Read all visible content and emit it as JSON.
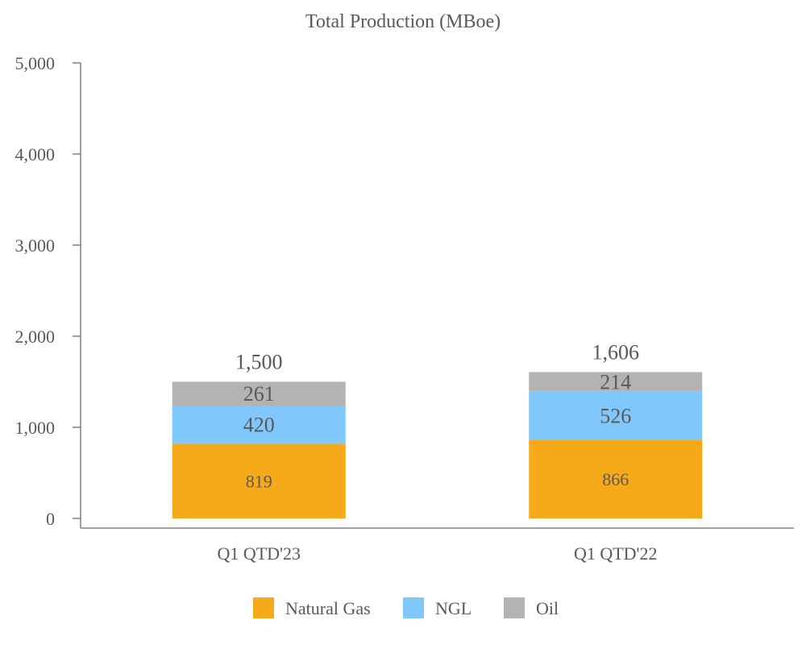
{
  "chart_data": {
    "type": "bar",
    "stacked": true,
    "title": "Total Production (MBoe)",
    "xlabel": "",
    "ylabel": "",
    "ylim": [
      0,
      5000
    ],
    "yticks": [
      0,
      1000,
      2000,
      3000,
      4000,
      5000
    ],
    "ytick_labels": [
      "0",
      "1,000",
      "2,000",
      "3,000",
      "4,000",
      "5,000"
    ],
    "grid": false,
    "legend_position": "bottom",
    "categories": [
      "Q1 QTD'23",
      "Q1 QTD'22"
    ],
    "series": [
      {
        "name": "Natural Gas",
        "color": "#F7AA19",
        "values": [
          819,
          866
        ],
        "labels": [
          "819",
          "866"
        ]
      },
      {
        "name": "NGL",
        "color": "#80C8FC",
        "values": [
          420,
          526
        ],
        "labels": [
          "420",
          "526"
        ]
      },
      {
        "name": "Oil",
        "color": "#B3B3B3",
        "values": [
          261,
          214
        ],
        "labels": [
          "261",
          "214"
        ]
      }
    ],
    "totals": [
      1500,
      1606
    ],
    "total_labels": [
      "1,500",
      "1,606"
    ],
    "colors": {
      "text": "#595959",
      "axis": "#808080"
    }
  }
}
